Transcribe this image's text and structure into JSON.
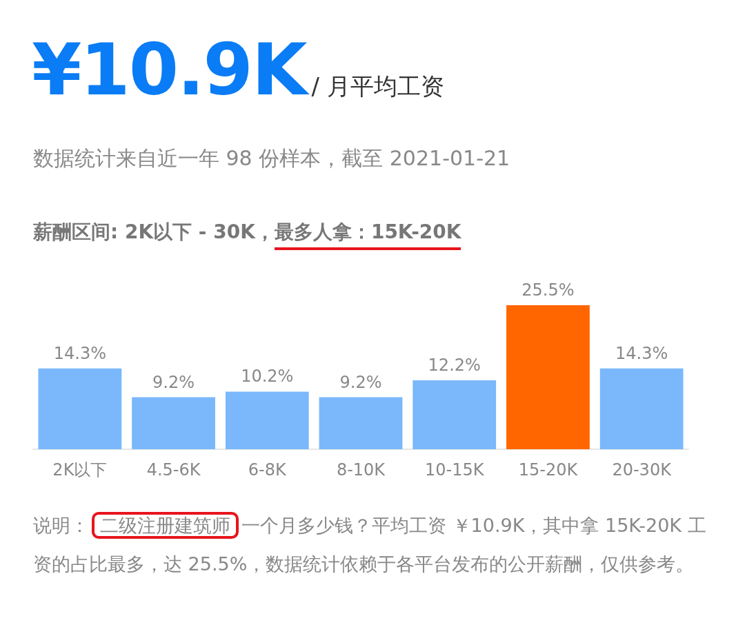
{
  "chart_data": {
    "type": "bar",
    "title": "¥10.9K",
    "subtitle": "/ 月平均工资",
    "categories": [
      "2K以下",
      "4.5-6K",
      "6-8K",
      "8-10K",
      "10-15K",
      "15-20K",
      "20-30K"
    ],
    "values": [
      14.3,
      9.2,
      10.2,
      9.2,
      12.2,
      25.5,
      14.3
    ],
    "colors": [
      "#7ab8fb",
      "#7ab8fb",
      "#7ab8fb",
      "#7ab8fb",
      "#7ab8fb",
      "#ff6600",
      "#7ab8fb"
    ],
    "value_labels": [
      "14.3%",
      "9.2%",
      "10.2%",
      "9.2%",
      "12.2%",
      "25.5%",
      "14.3%"
    ],
    "annotations": [
      "数据统计来自近一年 98 份样本，截至 2021-01-21",
      "薪酬区间: 2K以下 - 30K，",
      "最多人拿：15K-20K",
      "说明：",
      "二级注册建筑师",
      "一个月多少钱？平均工资 ￥10.9K，其中拿 15K-20K 工资的占比最多，达 25.5%，数据统计依赖于各平台发布的公开薪酬，仅供参考。"
    ]
  }
}
